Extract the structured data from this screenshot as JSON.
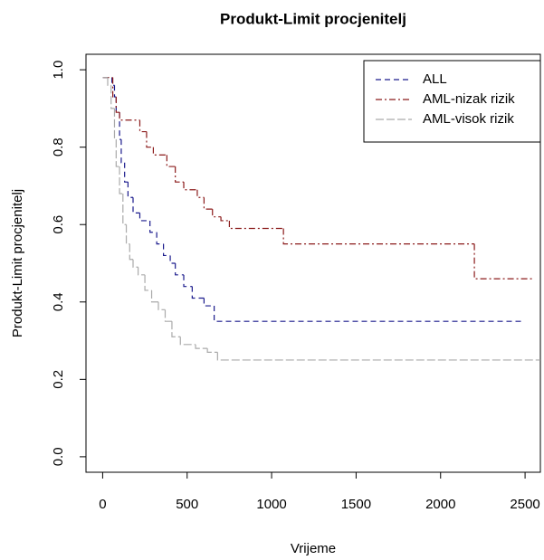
{
  "chart_data": {
    "type": "step",
    "title": "Produkt-Limit procjenitelj",
    "x_label": "Vrijeme",
    "y_label": "Produkt-Limit procjenitelj",
    "xlim": [
      -98.6,
      2590.6
    ],
    "ylim": [
      -0.04,
      1.04
    ],
    "xticks": [
      0,
      500,
      1000,
      1500,
      2000,
      2500
    ],
    "yticks": [
      {
        "value": 0,
        "label": "0.0"
      },
      0.2,
      0.4,
      0.6,
      0.8,
      {
        "value": 1,
        "label": "1.0"
      }
    ],
    "legend": "top-right",
    "series": [
      {
        "name": "ALL",
        "color": "#1a1a8c",
        "dash": "6,4",
        "x": [
          1,
          55,
          70,
          80,
          100,
          110,
          130,
          150,
          180,
          220,
          280,
          320,
          360,
          400,
          430,
          480,
          530,
          600,
          660,
          2491
        ],
        "values": [
          0.98,
          0.96,
          0.93,
          0.89,
          0.82,
          0.76,
          0.71,
          0.67,
          0.63,
          0.61,
          0.58,
          0.55,
          0.52,
          0.5,
          0.47,
          0.44,
          0.41,
          0.39,
          0.35,
          0.35
        ]
      },
      {
        "name": "AML-nizak rizik",
        "color": "#8b1a1a",
        "dash": "7,3,2,3",
        "x": [
          1,
          60,
          80,
          100,
          220,
          260,
          300,
          380,
          430,
          480,
          560,
          600,
          650,
          700,
          750,
          1070,
          2200,
          2553
        ],
        "values": [
          0.98,
          0.93,
          0.89,
          0.87,
          0.84,
          0.8,
          0.78,
          0.75,
          0.71,
          0.69,
          0.67,
          0.64,
          0.62,
          0.61,
          0.59,
          0.55,
          0.46,
          0.46
        ]
      },
      {
        "name": "AML-visok rizik",
        "color": "#aaaaaa",
        "dash": "9,3",
        "x": [
          1,
          30,
          50,
          70,
          80,
          100,
          120,
          140,
          160,
          180,
          210,
          250,
          290,
          330,
          370,
          410,
          460,
          550,
          620,
          680,
          2590
        ],
        "values": [
          0.98,
          0.96,
          0.9,
          0.82,
          0.75,
          0.68,
          0.6,
          0.55,
          0.51,
          0.49,
          0.47,
          0.43,
          0.4,
          0.38,
          0.35,
          0.31,
          0.29,
          0.28,
          0.27,
          0.25,
          0.25
        ]
      }
    ]
  }
}
